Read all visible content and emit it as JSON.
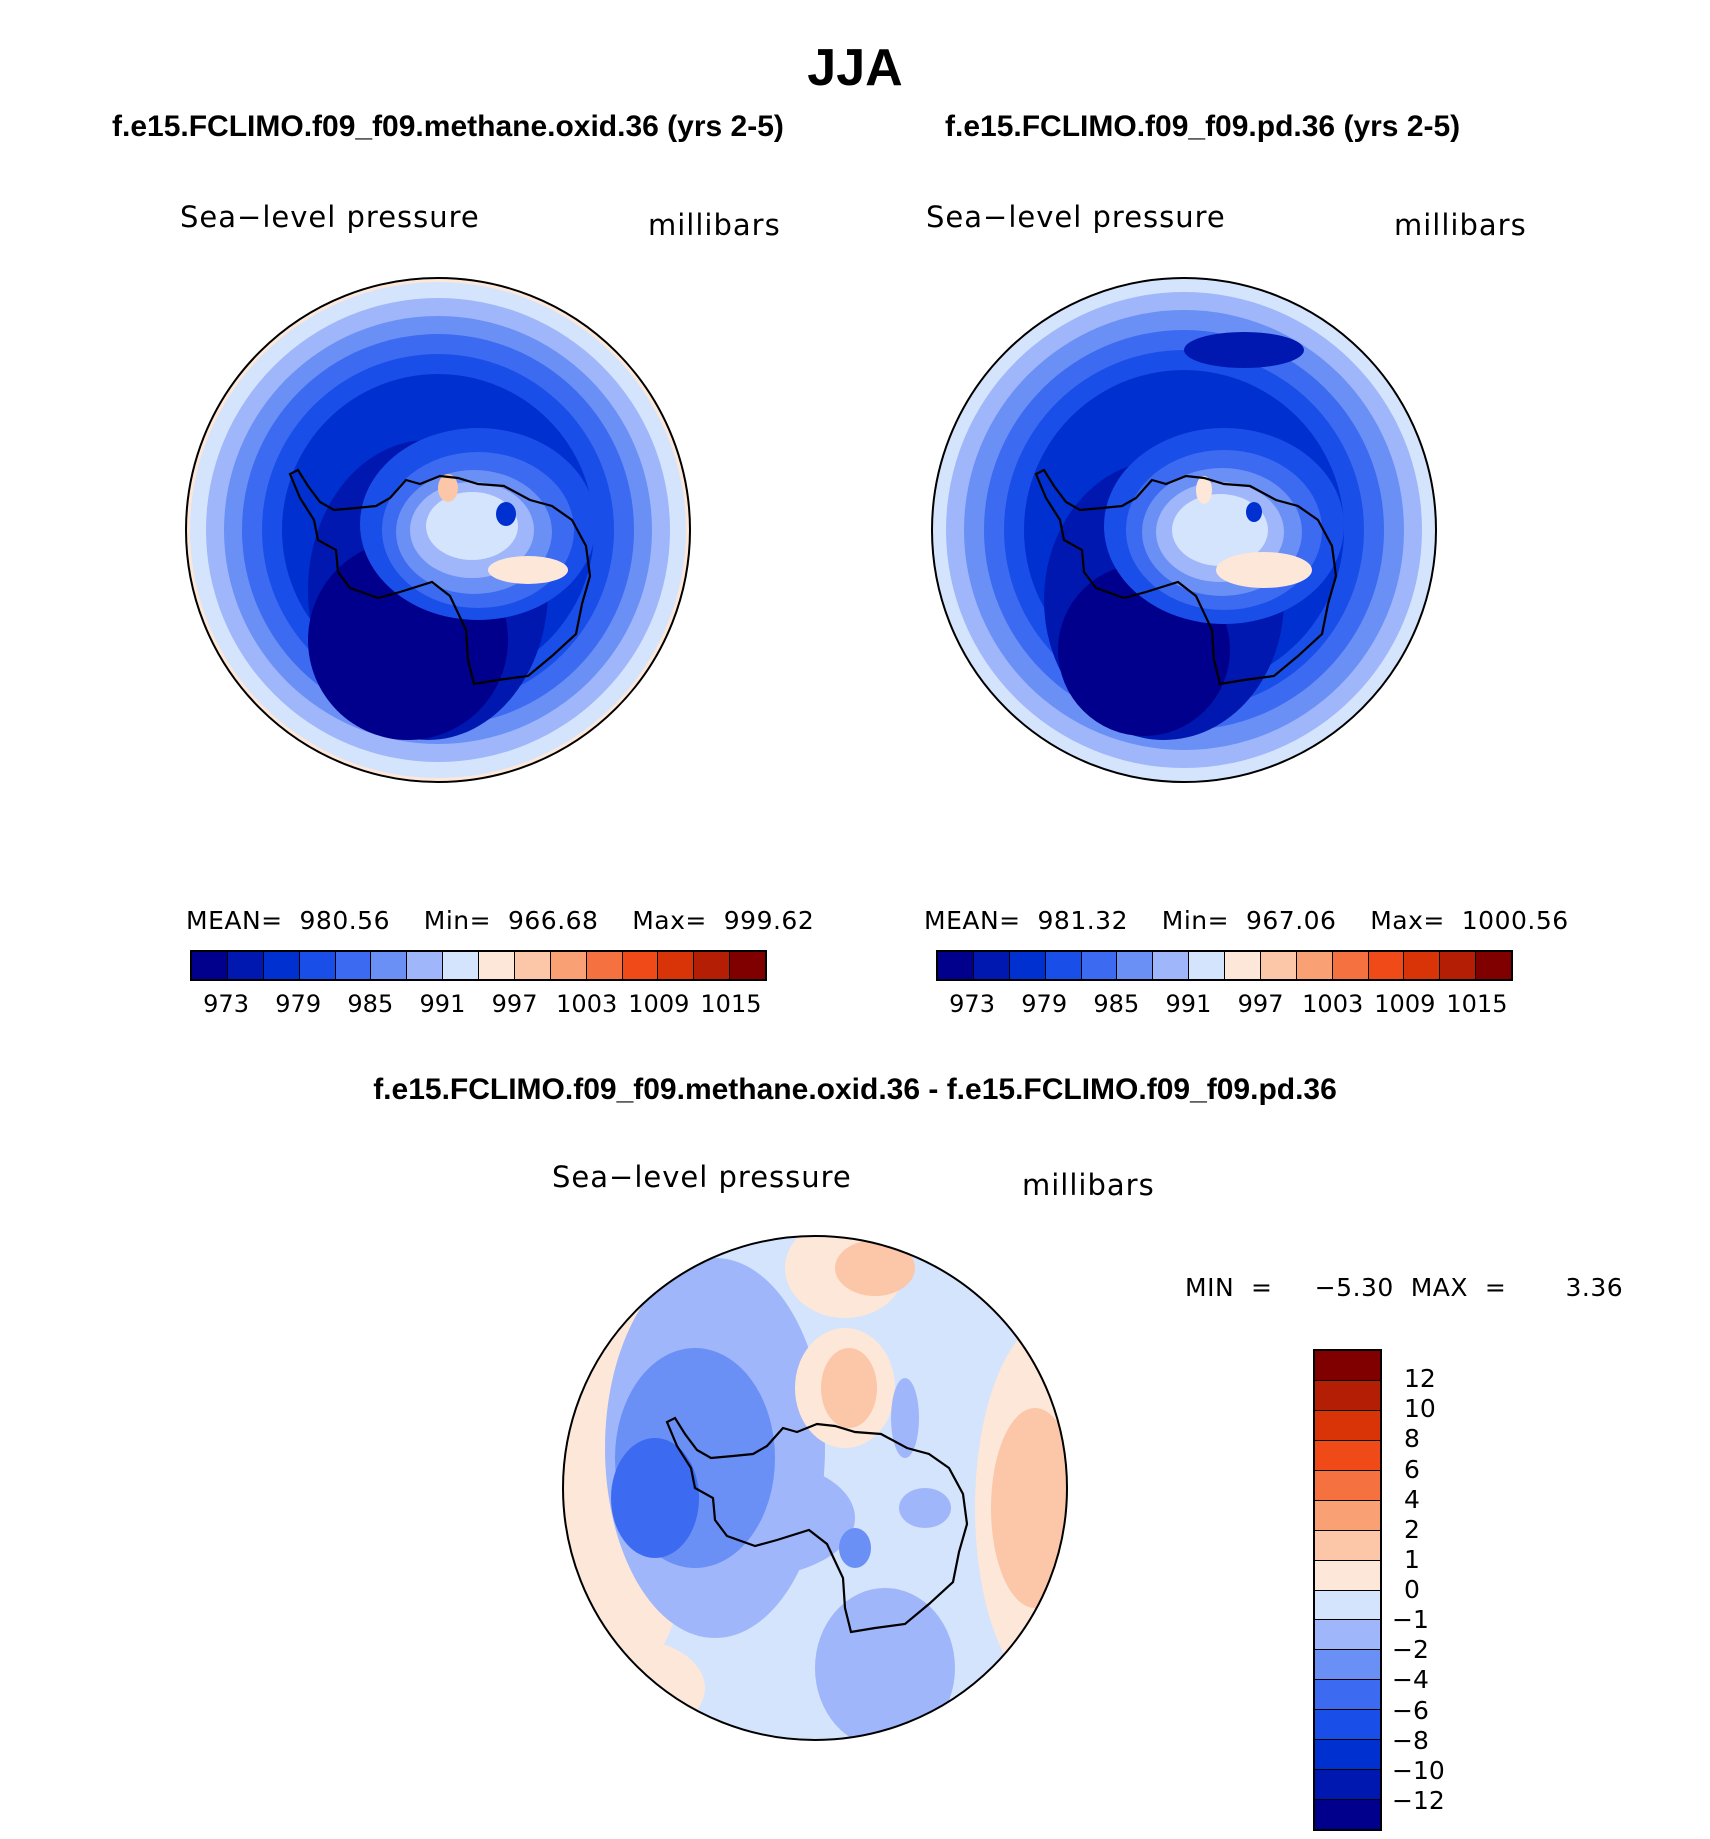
{
  "season": "JJA",
  "panels": {
    "left": {
      "title": "f.e15.FCLIMO.f09_f09.methane.oxid.36 (yrs 2-5)",
      "variable": "Sea−level  pressure",
      "units": "millibars",
      "stats": "MEAN=  980.56    Min=  966.68    Max=  999.62",
      "mean": 980.56,
      "min": 966.68,
      "max": 999.62
    },
    "right": {
      "title": "f.e15.FCLIMO.f09_f09.pd.36 (yrs 2-5)",
      "variable": "Sea−level  pressure",
      "units": "millibars",
      "stats": "MEAN=  981.32    Min=  967.06    Max=  1000.56",
      "mean": 981.32,
      "min": 967.06,
      "max": 1000.56
    },
    "diff": {
      "title": "f.e15.FCLIMO.f09_f09.methane.oxid.36 - f.e15.FCLIMO.f09_f09.pd.36",
      "variable": "Sea−level  pressure",
      "units": "millibars",
      "stats": "MIN  =     −5.30  MAX  =       3.36",
      "min": -5.3,
      "max": 3.36
    }
  },
  "colorbar_abs": {
    "colors": [
      "#00008c",
      "#0018b0",
      "#0030d0",
      "#1a4ee8",
      "#3c6af0",
      "#6a8ff5",
      "#9fb6fa",
      "#d4e4fc",
      "#fde7d8",
      "#fcc6a8",
      "#f9a075",
      "#f57240",
      "#f04a18",
      "#d83408",
      "#b41e04",
      "#800000"
    ],
    "labels": [
      "973",
      "979",
      "985",
      "991",
      "997",
      "1003",
      "1009",
      "1015"
    ],
    "levels": [
      970,
      973,
      976,
      979,
      982,
      985,
      988,
      991,
      994,
      997,
      1000,
      1003,
      1006,
      1009,
      1012,
      1015
    ]
  },
  "colorbar_diff": {
    "colors": [
      "#800000",
      "#b41e04",
      "#d83408",
      "#f04a18",
      "#f57240",
      "#f9a075",
      "#fcc6a8",
      "#fde7d8",
      "#d4e4fc",
      "#9fb6fa",
      "#6a8ff5",
      "#3c6af0",
      "#1a4ee8",
      "#0030d0",
      "#0018b0",
      "#00008c"
    ],
    "labels": [
      "12",
      "10",
      "8",
      "6",
      "4",
      "2",
      "1",
      "0",
      "−1",
      "−2",
      "−4",
      "−6",
      "−8",
      "−10",
      "−12"
    ]
  }
}
